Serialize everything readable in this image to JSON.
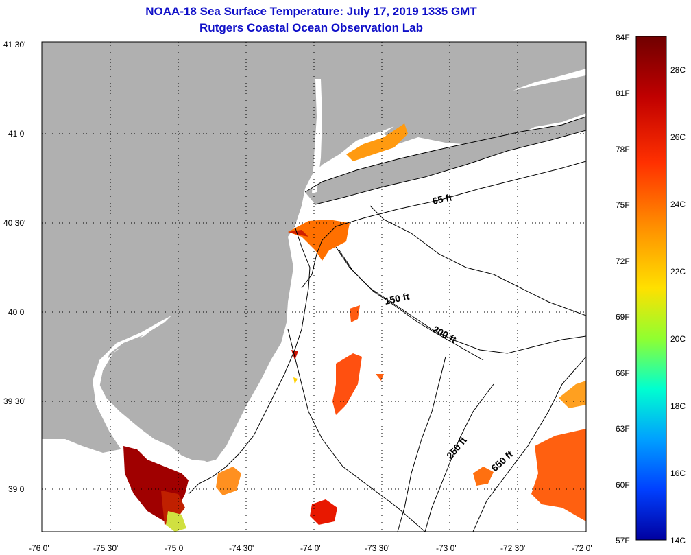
{
  "title": "NOAA-18 Sea Surface Temperature:  July 17, 2019 1335 GMT",
  "subtitle": "Rutgers Coastal Ocean Observation Lab",
  "lat_ticks": [
    "41 30'",
    "41 0'",
    "40 30'",
    "40 0'",
    "39 30'",
    "39 0'"
  ],
  "lon_ticks": [
    "-76 0'",
    "-75 30'",
    "-75 0'",
    "-74 30'",
    "-74 0'",
    "-73 30'",
    "-73 0'",
    "-72 30'",
    "-72 0'"
  ],
  "contours": [
    "65 ft",
    "150 ft",
    "200 ft",
    "250 ft",
    "650 ft"
  ],
  "colorbar": {
    "fahrenheit": [
      "84F",
      "81F",
      "78F",
      "75F",
      "72F",
      "69F",
      "66F",
      "63F",
      "60F",
      "57F"
    ],
    "celsius": [
      "28C",
      "26C",
      "24C",
      "22C",
      "20C",
      "18C",
      "16C",
      "14C"
    ]
  },
  "colors": {
    "land": "#b0b0b0",
    "title": "#1010c8",
    "scale": [
      "#7a0000",
      "#d00000",
      "#ff5000",
      "#ffb000",
      "#ffff00",
      "#80ff40",
      "#00ffff",
      "#00a0ff",
      "#0040ff",
      "#0000b0"
    ]
  }
}
